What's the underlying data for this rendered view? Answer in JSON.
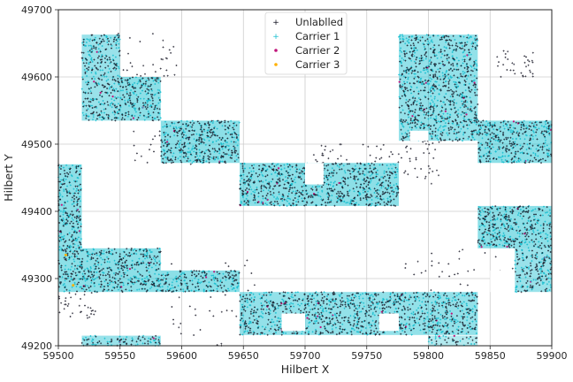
{
  "chart_data": {
    "type": "scatter",
    "title": "",
    "xlabel": "Hilbert X",
    "ylabel": "Hilbert Y",
    "xlim": [
      59500,
      59900
    ],
    "ylim": [
      49200,
      49700
    ],
    "xticks": [
      59500,
      59550,
      59600,
      59650,
      59700,
      59750,
      59800,
      59850,
      59900
    ],
    "yticks": [
      49200,
      49300,
      49400,
      49500,
      49600,
      49700
    ],
    "grid": true,
    "legend_position": "top-center",
    "series": [
      {
        "name": "Unlablled",
        "color": "#0b0b1a",
        "marker": "plus"
      },
      {
        "name": "Carrier 1",
        "color": "#17becf",
        "marker": "plus"
      },
      {
        "name": "Carrier 2",
        "color": "#c0157a",
        "marker": "dot"
      },
      {
        "name": "Carrier 3",
        "color": "#ffb000",
        "marker": "dot"
      }
    ],
    "regions": [
      {
        "x": [
          59500,
          59519
        ],
        "y": [
          49280,
          49470
        ],
        "density": 0.9
      },
      {
        "x": [
          59519,
          59583
        ],
        "y": [
          49280,
          49345
        ],
        "density": 0.9
      },
      {
        "x": [
          59519,
          59550
        ],
        "y": [
          49535,
          49663
        ],
        "density": 0.8
      },
      {
        "x": [
          59550,
          59583
        ],
        "y": [
          49535,
          49600
        ],
        "density": 0.9
      },
      {
        "x": [
          59583,
          59647
        ],
        "y": [
          49472,
          49535
        ],
        "density": 0.9
      },
      {
        "x": [
          59583,
          59647
        ],
        "y": [
          49280,
          49312
        ],
        "density": 0.9
      },
      {
        "x": [
          59647,
          59776
        ],
        "y": [
          49408,
          49472
        ],
        "density": 0.9
      },
      {
        "x": [
          59647,
          59840
        ],
        "y": [
          49216,
          49280
        ],
        "density": 0.85
      },
      {
        "x": [
          59776,
          59840
        ],
        "y": [
          49505,
          49663
        ],
        "density": 0.85
      },
      {
        "x": [
          59840,
          59900
        ],
        "y": [
          49472,
          49535
        ],
        "density": 0.9
      },
      {
        "x": [
          59840,
          59900
        ],
        "y": [
          49345,
          49408
        ],
        "density": 0.9
      },
      {
        "x": [
          59870,
          59900
        ],
        "y": [
          49280,
          49345
        ],
        "density": 0.8
      },
      {
        "x": [
          59519,
          59583
        ],
        "y": [
          49200,
          49215
        ],
        "density": 0.8
      },
      {
        "x": [
          59800,
          59840
        ],
        "y": [
          49200,
          49215
        ],
        "density": 0.6
      }
    ]
  }
}
